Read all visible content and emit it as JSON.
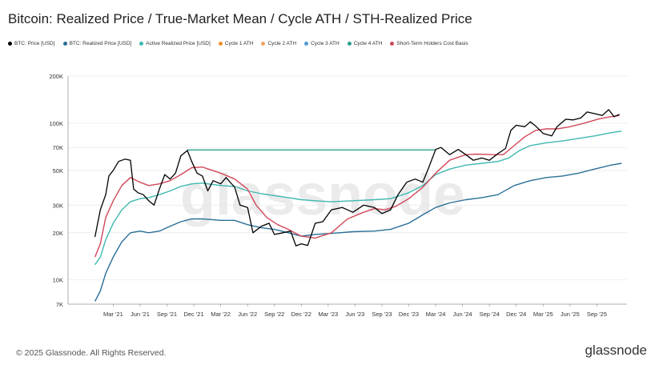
{
  "title": "Bitcoin: Realized Price / True-Market Mean / Cycle ATH / STH-Realized Price",
  "legend": [
    {
      "label": "BTC: Price [USD]",
      "color": "#000000"
    },
    {
      "label": "BTC: Realized Price [USD]",
      "color": "#2a6f97"
    },
    {
      "label": "Active Realized Price [USD]",
      "color": "#3fb8b0"
    },
    {
      "label": "Cycle 1 ATH",
      "color": "#f28e2b"
    },
    {
      "label": "Cycle 2 ATH",
      "color": "#f4a261"
    },
    {
      "label": "Cycle 3 ATH",
      "color": "#4e9fd1"
    },
    {
      "label": "Cycle 4 ATH",
      "color": "#2a9d8f"
    },
    {
      "label": "Short-Term Holders Cost Basis",
      "color": "#d1495b"
    }
  ],
  "footer": "© 2025 Glassnode. All Rights Reserved.",
  "watermark": "glassnode",
  "corner_mark": "glassnode",
  "chart_data": {
    "type": "line",
    "yscale": "log",
    "ylim": [
      7000,
      200000
    ],
    "yticks": [
      {
        "v": 7000,
        "l": "7K"
      },
      {
        "v": 10000,
        "l": "10K"
      },
      {
        "v": 20000,
        "l": "20K"
      },
      {
        "v": 30000,
        "l": "30K"
      },
      {
        "v": 50000,
        "l": "50K"
      },
      {
        "v": 70000,
        "l": "70K"
      },
      {
        "v": 100000,
        "l": "100K"
      },
      {
        "v": 200000,
        "l": "200K"
      }
    ],
    "xlim": [
      2020.75,
      2025.95
    ],
    "xticks": [
      {
        "t": 2021.17,
        "l": "Mar '21"
      },
      {
        "t": 2021.42,
        "l": "Jun '21"
      },
      {
        "t": 2021.67,
        "l": "Sep '21"
      },
      {
        "t": 2021.92,
        "l": "Dec '21"
      },
      {
        "t": 2022.17,
        "l": "Mar '22"
      },
      {
        "t": 2022.42,
        "l": "Jun '22"
      },
      {
        "t": 2022.67,
        "l": "Sep '22"
      },
      {
        "t": 2022.92,
        "l": "Dec '22"
      },
      {
        "t": 2023.17,
        "l": "Mar '23"
      },
      {
        "t": 2023.42,
        "l": "Jun '23"
      },
      {
        "t": 2023.67,
        "l": "Sep '23"
      },
      {
        "t": 2023.92,
        "l": "Dec '23"
      },
      {
        "t": 2024.17,
        "l": "Mar '24"
      },
      {
        "t": 2024.42,
        "l": "Jun '24"
      },
      {
        "t": 2024.67,
        "l": "Sep '24"
      },
      {
        "t": 2024.92,
        "l": "Dec '24"
      },
      {
        "t": 2025.17,
        "l": "Mar '25"
      },
      {
        "t": 2025.42,
        "l": "Jun '25"
      },
      {
        "t": 2025.67,
        "l": "Sep '25"
      }
    ],
    "series": [
      {
        "name": "BTC: Price [USD]",
        "color": "#000000",
        "points": [
          [
            2021.0,
            18800
          ],
          [
            2021.05,
            28000
          ],
          [
            2021.1,
            35000
          ],
          [
            2021.13,
            46000
          ],
          [
            2021.17,
            50000
          ],
          [
            2021.22,
            57000
          ],
          [
            2021.28,
            59000
          ],
          [
            2021.33,
            58000
          ],
          [
            2021.36,
            38000
          ],
          [
            2021.4,
            36000
          ],
          [
            2021.45,
            35000
          ],
          [
            2021.5,
            32000
          ],
          [
            2021.55,
            30000
          ],
          [
            2021.6,
            38000
          ],
          [
            2021.65,
            47000
          ],
          [
            2021.7,
            44000
          ],
          [
            2021.75,
            48000
          ],
          [
            2021.8,
            62000
          ],
          [
            2021.86,
            67000
          ],
          [
            2021.9,
            57000
          ],
          [
            2021.95,
            48000
          ],
          [
            2022.0,
            46000
          ],
          [
            2022.05,
            37000
          ],
          [
            2022.1,
            43000
          ],
          [
            2022.17,
            41000
          ],
          [
            2022.22,
            45000
          ],
          [
            2022.3,
            39000
          ],
          [
            2022.35,
            30000
          ],
          [
            2022.42,
            29000
          ],
          [
            2022.47,
            20000
          ],
          [
            2022.55,
            22000
          ],
          [
            2022.62,
            23000
          ],
          [
            2022.67,
            19500
          ],
          [
            2022.75,
            20000
          ],
          [
            2022.82,
            20500
          ],
          [
            2022.87,
            16500
          ],
          [
            2022.92,
            17000
          ],
          [
            2022.98,
            16600
          ],
          [
            2023.05,
            23000
          ],
          [
            2023.12,
            23500
          ],
          [
            2023.2,
            28000
          ],
          [
            2023.3,
            29000
          ],
          [
            2023.4,
            27000
          ],
          [
            2023.5,
            30000
          ],
          [
            2023.6,
            29000
          ],
          [
            2023.67,
            26500
          ],
          [
            2023.75,
            28000
          ],
          [
            2023.82,
            35000
          ],
          [
            2023.9,
            42000
          ],
          [
            2023.98,
            44000
          ],
          [
            2024.05,
            42000
          ],
          [
            2024.1,
            51000
          ],
          [
            2024.17,
            68000
          ],
          [
            2024.22,
            70000
          ],
          [
            2024.3,
            63000
          ],
          [
            2024.38,
            68000
          ],
          [
            2024.45,
            63000
          ],
          [
            2024.52,
            58000
          ],
          [
            2024.6,
            60000
          ],
          [
            2024.67,
            58000
          ],
          [
            2024.75,
            64000
          ],
          [
            2024.82,
            69000
          ],
          [
            2024.87,
            90000
          ],
          [
            2024.92,
            97000
          ],
          [
            2025.0,
            95000
          ],
          [
            2025.05,
            102000
          ],
          [
            2025.1,
            96000
          ],
          [
            2025.17,
            86000
          ],
          [
            2025.25,
            83000
          ],
          [
            2025.3,
            95000
          ],
          [
            2025.38,
            106000
          ],
          [
            2025.45,
            105000
          ],
          [
            2025.52,
            108000
          ],
          [
            2025.58,
            118000
          ],
          [
            2025.65,
            115000
          ],
          [
            2025.72,
            112000
          ],
          [
            2025.78,
            122000
          ],
          [
            2025.83,
            110000
          ],
          [
            2025.88,
            114000
          ]
        ]
      },
      {
        "name": "BTC: Realized Price [USD]",
        "color": "#2a6f97",
        "points": [
          [
            2021.0,
            7300
          ],
          [
            2021.05,
            8500
          ],
          [
            2021.1,
            11000
          ],
          [
            2021.17,
            14000
          ],
          [
            2021.25,
            17500
          ],
          [
            2021.33,
            20000
          ],
          [
            2021.42,
            20500
          ],
          [
            2021.5,
            20000
          ],
          [
            2021.6,
            20500
          ],
          [
            2021.7,
            22000
          ],
          [
            2021.8,
            23500
          ],
          [
            2021.9,
            24500
          ],
          [
            2022.0,
            24500
          ],
          [
            2022.17,
            24000
          ],
          [
            2022.3,
            24000
          ],
          [
            2022.42,
            22500
          ],
          [
            2022.55,
            21500
          ],
          [
            2022.67,
            21000
          ],
          [
            2022.8,
            20000
          ],
          [
            2022.92,
            19000
          ],
          [
            2023.05,
            19500
          ],
          [
            2023.2,
            19800
          ],
          [
            2023.4,
            20300
          ],
          [
            2023.6,
            20500
          ],
          [
            2023.75,
            21000
          ],
          [
            2023.92,
            23000
          ],
          [
            2024.05,
            26000
          ],
          [
            2024.17,
            29000
          ],
          [
            2024.3,
            31000
          ],
          [
            2024.45,
            32500
          ],
          [
            2024.6,
            33500
          ],
          [
            2024.75,
            35000
          ],
          [
            2024.9,
            40000
          ],
          [
            2025.05,
            43000
          ],
          [
            2025.2,
            45000
          ],
          [
            2025.35,
            46000
          ],
          [
            2025.5,
            48000
          ],
          [
            2025.65,
            51000
          ],
          [
            2025.8,
            54000
          ],
          [
            2025.9,
            55500
          ]
        ]
      },
      {
        "name": "Active Realized Price [USD]",
        "color": "#3fb8b0",
        "points": [
          [
            2021.0,
            12500
          ],
          [
            2021.05,
            14000
          ],
          [
            2021.1,
            18000
          ],
          [
            2021.17,
            23000
          ],
          [
            2021.25,
            28000
          ],
          [
            2021.33,
            31500
          ],
          [
            2021.42,
            33000
          ],
          [
            2021.5,
            33500
          ],
          [
            2021.6,
            35000
          ],
          [
            2021.7,
            37000
          ],
          [
            2021.8,
            39500
          ],
          [
            2021.9,
            41000
          ],
          [
            2022.0,
            41500
          ],
          [
            2022.17,
            40000
          ],
          [
            2022.3,
            39500
          ],
          [
            2022.42,
            37000
          ],
          [
            2022.55,
            35500
          ],
          [
            2022.67,
            34500
          ],
          [
            2022.8,
            33500
          ],
          [
            2022.92,
            32500
          ],
          [
            2023.05,
            32000
          ],
          [
            2023.2,
            31500
          ],
          [
            2023.4,
            32000
          ],
          [
            2023.6,
            32500
          ],
          [
            2023.75,
            33000
          ],
          [
            2023.92,
            36000
          ],
          [
            2024.05,
            40000
          ],
          [
            2024.17,
            47000
          ],
          [
            2024.3,
            51000
          ],
          [
            2024.45,
            54000
          ],
          [
            2024.6,
            55500
          ],
          [
            2024.75,
            57000
          ],
          [
            2024.85,
            60000
          ],
          [
            2024.95,
            67000
          ],
          [
            2025.05,
            72000
          ],
          [
            2025.2,
            75000
          ],
          [
            2025.35,
            77000
          ],
          [
            2025.5,
            80000
          ],
          [
            2025.65,
            83000
          ],
          [
            2025.8,
            87000
          ],
          [
            2025.9,
            89000
          ]
        ]
      },
      {
        "name": "Short-Term Holders Cost Basis",
        "color": "#d1495b",
        "points": [
          [
            2021.0,
            14000
          ],
          [
            2021.05,
            17000
          ],
          [
            2021.1,
            25000
          ],
          [
            2021.17,
            32000
          ],
          [
            2021.25,
            40000
          ],
          [
            2021.33,
            45000
          ],
          [
            2021.42,
            42000
          ],
          [
            2021.5,
            40000
          ],
          [
            2021.6,
            41000
          ],
          [
            2021.7,
            43000
          ],
          [
            2021.8,
            47000
          ],
          [
            2021.9,
            52000
          ],
          [
            2022.0,
            52500
          ],
          [
            2022.17,
            48000
          ],
          [
            2022.3,
            44000
          ],
          [
            2022.42,
            38000
          ],
          [
            2022.5,
            30000
          ],
          [
            2022.6,
            25000
          ],
          [
            2022.7,
            22500
          ],
          [
            2022.8,
            21000
          ],
          [
            2022.92,
            19000
          ],
          [
            2023.05,
            18500
          ],
          [
            2023.2,
            20000
          ],
          [
            2023.35,
            24500
          ],
          [
            2023.5,
            27000
          ],
          [
            2023.6,
            28500
          ],
          [
            2023.7,
            28000
          ],
          [
            2023.8,
            29500
          ],
          [
            2023.92,
            33000
          ],
          [
            2024.05,
            39000
          ],
          [
            2024.17,
            48000
          ],
          [
            2024.3,
            58000
          ],
          [
            2024.45,
            63000
          ],
          [
            2024.55,
            63500
          ],
          [
            2024.7,
            63000
          ],
          [
            2024.8,
            63000
          ],
          [
            2024.9,
            72000
          ],
          [
            2025.0,
            82000
          ],
          [
            2025.1,
            90000
          ],
          [
            2025.2,
            92000
          ],
          [
            2025.3,
            92000
          ],
          [
            2025.42,
            95000
          ],
          [
            2025.55,
            100000
          ],
          [
            2025.7,
            107000
          ],
          [
            2025.8,
            110000
          ],
          [
            2025.88,
            112000
          ]
        ]
      },
      {
        "name": "Cycle 4 ATH",
        "color": "#2a9d8f",
        "points": [
          [
            2021.86,
            67500
          ],
          [
            2024.17,
            67500
          ]
        ]
      }
    ]
  }
}
